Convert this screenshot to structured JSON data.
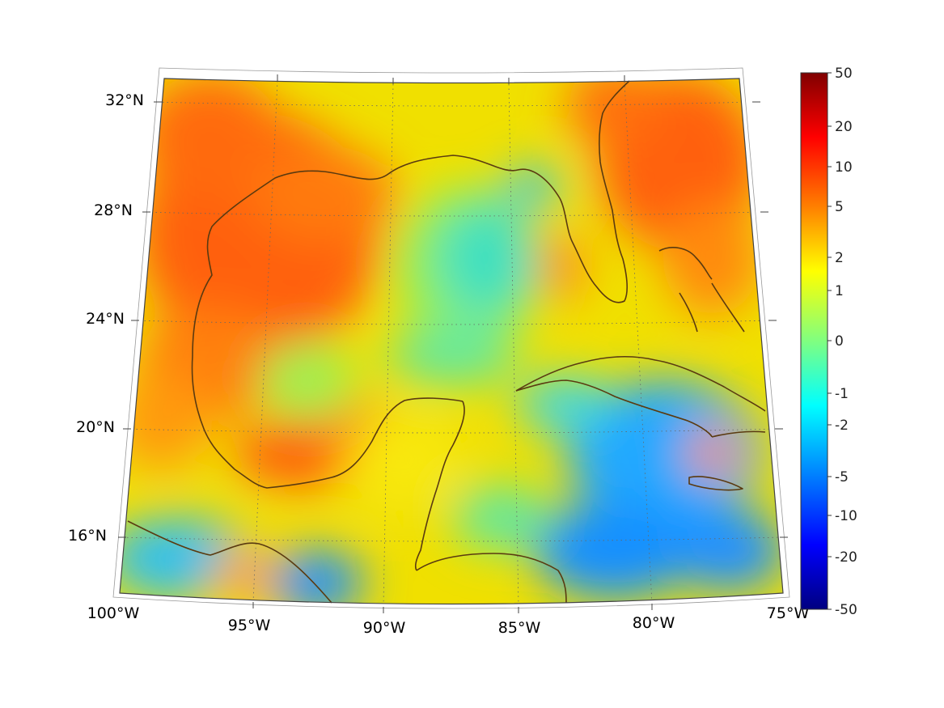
{
  "map": {
    "projection": "conic (Lambert-style), Gulf of Mexico and Caribbean",
    "latitude_ticks": [
      {
        "value": 32,
        "label": "32°N"
      },
      {
        "value": 28,
        "label": "28°N"
      },
      {
        "value": 24,
        "label": "24°N"
      },
      {
        "value": 20,
        "label": "20°N"
      },
      {
        "value": 16,
        "label": "16°N"
      }
    ],
    "longitude_ticks": [
      {
        "value": -100,
        "label": "100°W"
      },
      {
        "value": -95,
        "label": "95°W"
      },
      {
        "value": -90,
        "label": "90°W"
      },
      {
        "value": -85,
        "label": "85°W"
      },
      {
        "value": -80,
        "label": "80°W"
      },
      {
        "value": -75,
        "label": "75°W"
      }
    ],
    "grid": "dotted graticule",
    "coastline_color": "#5a3a10",
    "field_pattern": "warm (orange-red, +5 to +10) over western Gulf, Texas/Louisiana coast, Georgia/Carolinas and Atlantic NE; yellow-green (0 to +2) central Gulf and Yucatan; cyan-blue (-2 to -10) eastern Gulf, south of Cuba, Caribbean SE and Pacific SW corner"
  },
  "colorbar": {
    "scale": "symmetric log",
    "colormap": "jet",
    "ticks": [
      "50",
      "20",
      "10",
      "5",
      "2",
      "1",
      "0",
      "-1",
      "-2",
      "-5",
      "-10",
      "-20",
      "-50"
    ],
    "stops": [
      "#800000",
      "#ff0000",
      "#ff8000",
      "#ffff00",
      "#80ff80",
      "#00ffff",
      "#0080ff",
      "#0000ff",
      "#000080"
    ]
  }
}
